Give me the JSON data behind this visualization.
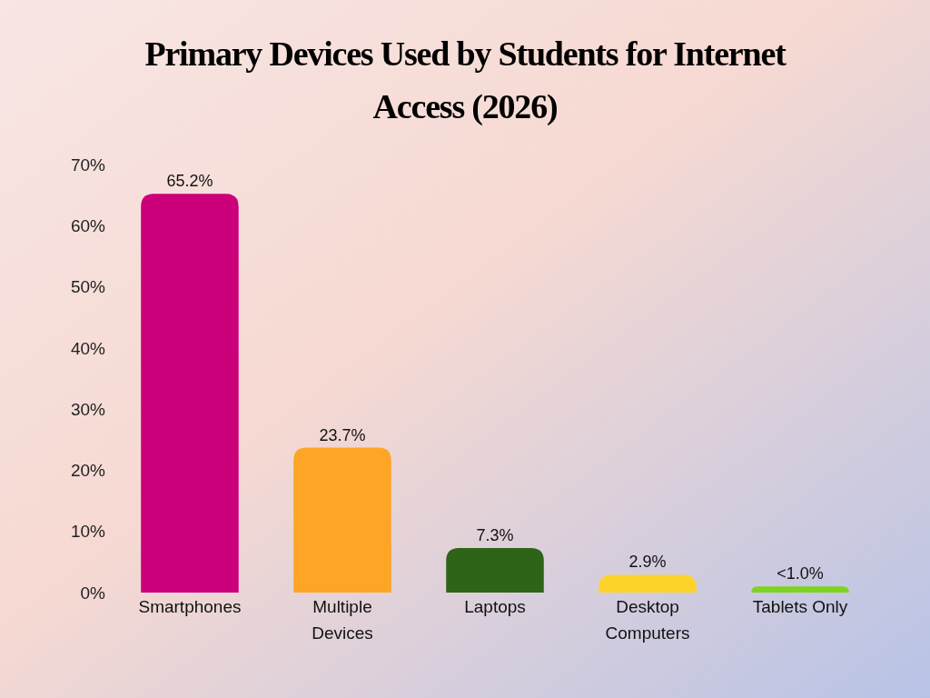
{
  "chart_data": {
    "type": "bar",
    "title": "Primary Devices Used by Students for Internet Access (2026)",
    "categories": [
      "Smartphones",
      "Multiple Devices",
      "Laptops",
      "Desktop Computers",
      "Tablets Only"
    ],
    "values": [
      65.2,
      23.7,
      7.3,
      2.9,
      1.0
    ],
    "colors": [
      "#cc007a",
      "#ffa526",
      "#2e6417",
      "#fdd32a",
      "#7ed321"
    ],
    "value_labels": [
      "65.2%",
      "23.7%",
      "7.3%",
      "2.9%",
      "<1.0%"
    ],
    "ylim": [
      0,
      70
    ],
    "yticks": [
      {
        "value": 0,
        "label": "0%"
      },
      {
        "value": 10,
        "label": "10%"
      },
      {
        "value": 20,
        "label": "20%"
      },
      {
        "value": 30,
        "label": "30%"
      },
      {
        "value": 40,
        "label": "40%"
      },
      {
        "value": 50,
        "label": "50%"
      },
      {
        "value": 60,
        "label": "60%"
      },
      {
        "value": 70,
        "label": "70%"
      }
    ],
    "grid": false
  }
}
